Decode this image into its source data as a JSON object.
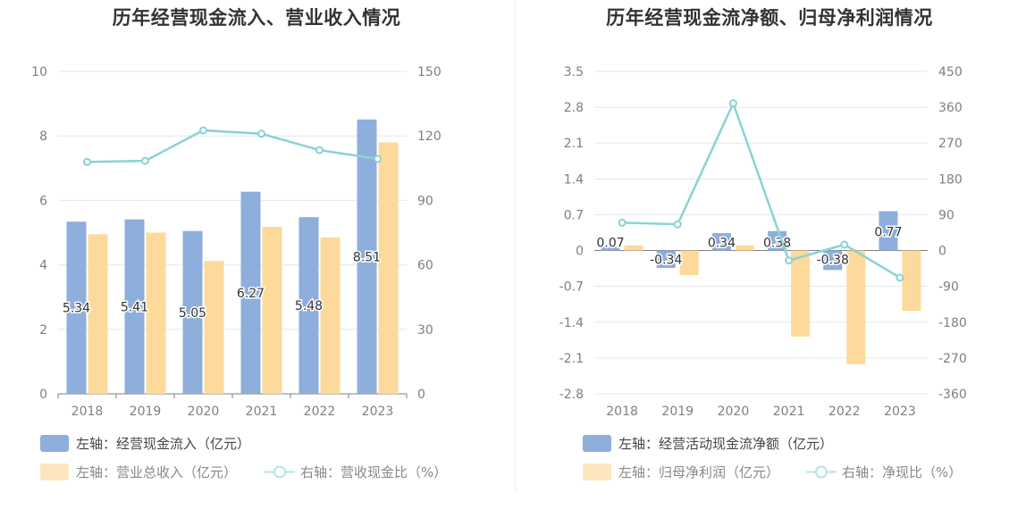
{
  "chart_data": [
    {
      "type": "bar",
      "title": "历年经营现金流入、营业收入情况",
      "categories": [
        "2018",
        "2019",
        "2020",
        "2021",
        "2022",
        "2023"
      ],
      "ylim_left": [
        0,
        10
      ],
      "yticks_left": [
        "0",
        "2",
        "4",
        "6",
        "8",
        "10"
      ],
      "ylim_right": [
        0,
        150
      ],
      "yticks_right": [
        "0",
        "30",
        "60",
        "90",
        "120",
        "150"
      ],
      "series": [
        {
          "name": "左轴：经营现金流入（亿元）",
          "axis": "left",
          "kind": "bar",
          "color": "#8eaedb",
          "values": [
            5.34,
            5.41,
            5.05,
            6.27,
            5.48,
            8.51
          ],
          "labels": [
            "5.34",
            "5.41",
            "5.05",
            "6.27",
            "5.48",
            "8.51"
          ]
        },
        {
          "name": "左轴：营业总收入（亿元）",
          "axis": "left",
          "kind": "bar",
          "color": "#fdd99b",
          "values": [
            4.95,
            5.0,
            4.12,
            5.18,
            4.85,
            7.8
          ]
        },
        {
          "name": "右轴：营收现金比（%）",
          "axis": "right",
          "kind": "line",
          "color": "#8ad2d6",
          "values": [
            107.9,
            108.4,
            122.6,
            121.0,
            113.4,
            109.3
          ]
        }
      ]
    },
    {
      "type": "bar",
      "title": "历年经营现金流净额、归母净利润情况",
      "categories": [
        "2018",
        "2019",
        "2020",
        "2021",
        "2022",
        "2023"
      ],
      "ylim_left": [
        -2.8,
        3.5
      ],
      "yticks_left": [
        "-2.8",
        "-2.1",
        "-1.4",
        "-0.7",
        "0",
        "0.7",
        "1.4",
        "2.1",
        "2.8",
        "3.5"
      ],
      "ylim_right": [
        -360,
        450
      ],
      "yticks_right": [
        "-360",
        "-270",
        "-180",
        "-90",
        "0",
        "90",
        "180",
        "270",
        "360",
        "450"
      ],
      "series": [
        {
          "name": "左轴：经营活动现金流净额（亿元）",
          "axis": "left",
          "kind": "bar",
          "color": "#8eaedb",
          "values": [
            0.07,
            -0.34,
            0.34,
            0.38,
            -0.38,
            0.77
          ],
          "labels": [
            "0.07",
            "-0.34",
            "0.34",
            "0.38",
            "-0.38",
            "0.77"
          ]
        },
        {
          "name": "左轴：归母净利润（亿元）",
          "axis": "left",
          "kind": "bar",
          "color": "#fdd99b",
          "values": [
            0.1,
            -0.48,
            0.1,
            -1.68,
            -2.22,
            -1.18
          ]
        },
        {
          "name": "右轴：净现比（%）",
          "axis": "right",
          "kind": "line",
          "color": "#8ad2d6",
          "values": [
            70,
            66,
            370,
            -25,
            15,
            -68
          ]
        }
      ]
    }
  ]
}
